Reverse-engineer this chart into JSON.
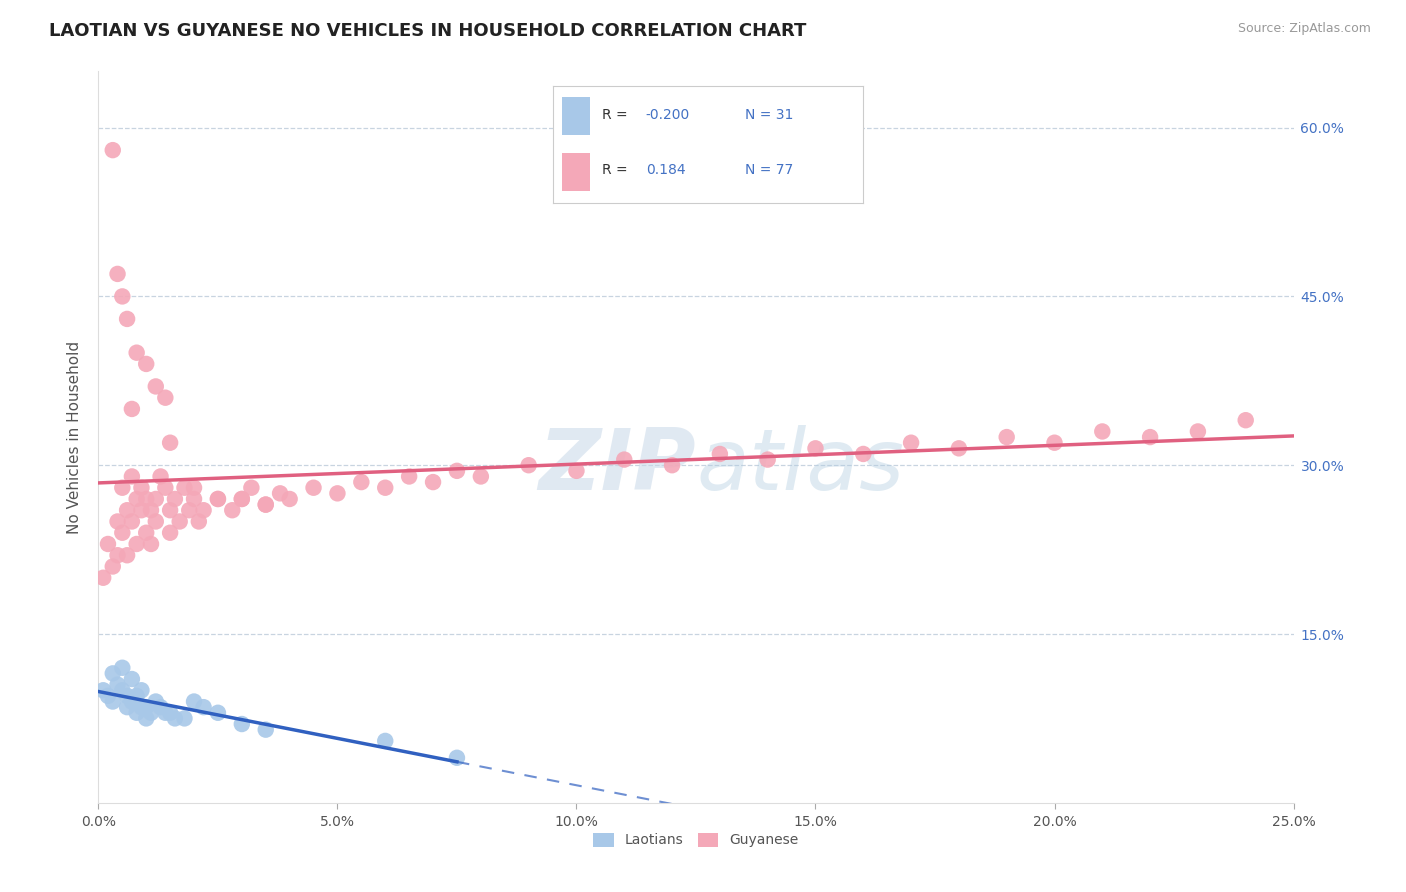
{
  "title": "LAOTIAN VS GUYANESE NO VEHICLES IN HOUSEHOLD CORRELATION CHART",
  "source": "Source: ZipAtlas.com",
  "ylabel": "No Vehicles in Household",
  "xlim": [
    0.0,
    0.25
  ],
  "ylim": [
    0.0,
    0.65
  ],
  "xticks": [
    0.0,
    0.05,
    0.1,
    0.15,
    0.2,
    0.25
  ],
  "xticklabels": [
    "0.0%",
    "5.0%",
    "10.0%",
    "15.0%",
    "20.0%",
    "25.0%"
  ],
  "yticks_right": [
    0.15,
    0.3,
    0.45,
    0.6
  ],
  "ytick_labels_right": [
    "15.0%",
    "30.0%",
    "45.0%",
    "60.0%"
  ],
  "laotian_color": "#a8c8e8",
  "guyanese_color": "#f4a8b8",
  "laotian_line_color": "#3060c0",
  "guyanese_line_color": "#e06080",
  "background_color": "#ffffff",
  "grid_color": "#c8d4e0",
  "legend_text_color": "#4472c4",
  "legend_label_color": "#555555",
  "watermark_color": "#dce8f0",
  "laotian_x": [
    0.001,
    0.002,
    0.003,
    0.003,
    0.004,
    0.005,
    0.005,
    0.006,
    0.006,
    0.007,
    0.007,
    0.008,
    0.008,
    0.009,
    0.009,
    0.01,
    0.01,
    0.011,
    0.012,
    0.013,
    0.014,
    0.015,
    0.016,
    0.018,
    0.02,
    0.022,
    0.025,
    0.03,
    0.035,
    0.06,
    0.075
  ],
  "laotian_y": [
    0.1,
    0.095,
    0.115,
    0.09,
    0.105,
    0.12,
    0.1,
    0.095,
    0.085,
    0.11,
    0.09,
    0.095,
    0.08,
    0.1,
    0.085,
    0.085,
    0.075,
    0.08,
    0.09,
    0.085,
    0.08,
    0.08,
    0.075,
    0.075,
    0.09,
    0.085,
    0.08,
    0.07,
    0.065,
    0.055,
    0.04
  ],
  "guyanese_x": [
    0.001,
    0.002,
    0.003,
    0.004,
    0.004,
    0.005,
    0.005,
    0.006,
    0.006,
    0.007,
    0.007,
    0.008,
    0.008,
    0.009,
    0.009,
    0.01,
    0.01,
    0.011,
    0.011,
    0.012,
    0.012,
    0.013,
    0.014,
    0.015,
    0.015,
    0.016,
    0.017,
    0.018,
    0.019,
    0.02,
    0.021,
    0.022,
    0.025,
    0.028,
    0.03,
    0.032,
    0.035,
    0.038,
    0.04,
    0.045,
    0.05,
    0.055,
    0.06,
    0.065,
    0.07,
    0.075,
    0.08,
    0.09,
    0.1,
    0.11,
    0.12,
    0.13,
    0.14,
    0.15,
    0.16,
    0.17,
    0.18,
    0.19,
    0.2,
    0.21,
    0.22,
    0.23,
    0.24,
    0.005,
    0.006,
    0.008,
    0.01,
    0.012,
    0.014,
    0.003,
    0.004,
    0.007,
    0.015,
    0.02,
    0.025,
    0.03,
    0.035
  ],
  "guyanese_y": [
    0.2,
    0.23,
    0.21,
    0.25,
    0.22,
    0.28,
    0.24,
    0.26,
    0.22,
    0.29,
    0.25,
    0.27,
    0.23,
    0.28,
    0.26,
    0.27,
    0.24,
    0.26,
    0.23,
    0.27,
    0.25,
    0.29,
    0.28,
    0.26,
    0.24,
    0.27,
    0.25,
    0.28,
    0.26,
    0.27,
    0.25,
    0.26,
    0.27,
    0.26,
    0.27,
    0.28,
    0.265,
    0.275,
    0.27,
    0.28,
    0.275,
    0.285,
    0.28,
    0.29,
    0.285,
    0.295,
    0.29,
    0.3,
    0.295,
    0.305,
    0.3,
    0.31,
    0.305,
    0.315,
    0.31,
    0.32,
    0.315,
    0.325,
    0.32,
    0.33,
    0.325,
    0.33,
    0.34,
    0.45,
    0.43,
    0.4,
    0.39,
    0.37,
    0.36,
    0.58,
    0.47,
    0.35,
    0.32,
    0.28,
    0.27,
    0.27,
    0.265
  ]
}
